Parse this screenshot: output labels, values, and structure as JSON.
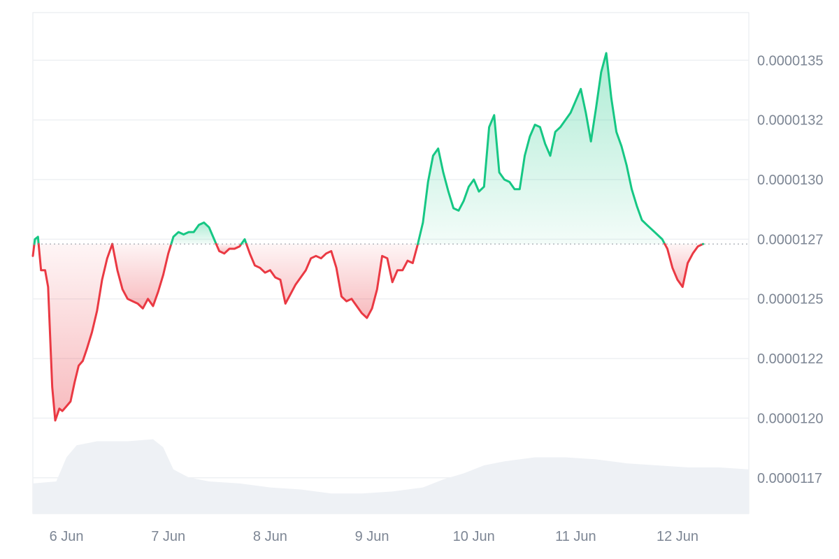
{
  "chart_data": {
    "type": "area",
    "title": "",
    "xlabel": "",
    "ylabel": "",
    "x_ticks": [
      "6 Jun",
      "7 Jun",
      "8 Jun",
      "9 Jun",
      "10 Jun",
      "11 Jun",
      "12 Jun"
    ],
    "y_ticks": [
      "0.0000135",
      "0.0000132",
      "0.0000130",
      "0.0000127",
      "0.0000125",
      "0.0000122",
      "0.0000120",
      "0.0000117"
    ],
    "y_tick_values": [
      1.35e-05,
      1.325e-05,
      1.3e-05,
      1.275e-05,
      1.25e-05,
      1.225e-05,
      1.2e-05,
      1.175e-05
    ],
    "x_range_days": [
      5.67,
      12.7
    ],
    "ylim": [
      1.16e-05,
      1.37e-05
    ],
    "baseline": 1.273e-05,
    "grid": true,
    "colors": {
      "up": "#16c784",
      "down": "#ea3943",
      "grid": "#eef0f3",
      "volume": "#eef1f5",
      "baseline": "#9aa0a8"
    },
    "price_series": {
      "name": "",
      "points": [
        [
          5.67,
          1.268e-05
        ],
        [
          5.69,
          1.275e-05
        ],
        [
          5.72,
          1.276e-05
        ],
        [
          5.75,
          1.262e-05
        ],
        [
          5.79,
          1.262e-05
        ],
        [
          5.82,
          1.255e-05
        ],
        [
          5.86,
          1.213e-05
        ],
        [
          5.89,
          1.199e-05
        ],
        [
          5.93,
          1.204e-05
        ],
        [
          5.96,
          1.203e-05
        ],
        [
          6.0,
          1.205e-05
        ],
        [
          6.04,
          1.207e-05
        ],
        [
          6.08,
          1.215e-05
        ],
        [
          6.12,
          1.222e-05
        ],
        [
          6.16,
          1.224e-05
        ],
        [
          6.2,
          1.229e-05
        ],
        [
          6.25,
          1.236e-05
        ],
        [
          6.3,
          1.245e-05
        ],
        [
          6.35,
          1.258e-05
        ],
        [
          6.4,
          1.267e-05
        ],
        [
          6.45,
          1.273e-05
        ],
        [
          6.5,
          1.262e-05
        ],
        [
          6.55,
          1.254e-05
        ],
        [
          6.6,
          1.25e-05
        ],
        [
          6.65,
          1.249e-05
        ],
        [
          6.7,
          1.248e-05
        ],
        [
          6.75,
          1.246e-05
        ],
        [
          6.8,
          1.25e-05
        ],
        [
          6.85,
          1.247e-05
        ],
        [
          6.9,
          1.253e-05
        ],
        [
          6.95,
          1.26e-05
        ],
        [
          7.0,
          1.269e-05
        ],
        [
          7.05,
          1.276e-05
        ],
        [
          7.1,
          1.278e-05
        ],
        [
          7.15,
          1.277e-05
        ],
        [
          7.2,
          1.278e-05
        ],
        [
          7.25,
          1.278e-05
        ],
        [
          7.3,
          1.281e-05
        ],
        [
          7.35,
          1.282e-05
        ],
        [
          7.4,
          1.28e-05
        ],
        [
          7.45,
          1.275e-05
        ],
        [
          7.5,
          1.27e-05
        ],
        [
          7.55,
          1.269e-05
        ],
        [
          7.6,
          1.271e-05
        ],
        [
          7.65,
          1.271e-05
        ],
        [
          7.7,
          1.272e-05
        ],
        [
          7.75,
          1.275e-05
        ],
        [
          7.8,
          1.269e-05
        ],
        [
          7.85,
          1.264e-05
        ],
        [
          7.9,
          1.263e-05
        ],
        [
          7.95,
          1.261e-05
        ],
        [
          8.0,
          1.262e-05
        ],
        [
          8.05,
          1.259e-05
        ],
        [
          8.1,
          1.258e-05
        ],
        [
          8.15,
          1.248e-05
        ],
        [
          8.2,
          1.252e-05
        ],
        [
          8.25,
          1.256e-05
        ],
        [
          8.3,
          1.259e-05
        ],
        [
          8.35,
          1.262e-05
        ],
        [
          8.4,
          1.267e-05
        ],
        [
          8.45,
          1.268e-05
        ],
        [
          8.5,
          1.267e-05
        ],
        [
          8.55,
          1.269e-05
        ],
        [
          8.6,
          1.27e-05
        ],
        [
          8.65,
          1.263e-05
        ],
        [
          8.7,
          1.251e-05
        ],
        [
          8.75,
          1.249e-05
        ],
        [
          8.8,
          1.25e-05
        ],
        [
          8.85,
          1.247e-05
        ],
        [
          8.9,
          1.244e-05
        ],
        [
          8.95,
          1.242e-05
        ],
        [
          9.0,
          1.246e-05
        ],
        [
          9.05,
          1.254e-05
        ],
        [
          9.1,
          1.268e-05
        ],
        [
          9.15,
          1.267e-05
        ],
        [
          9.2,
          1.257e-05
        ],
        [
          9.25,
          1.262e-05
        ],
        [
          9.3,
          1.262e-05
        ],
        [
          9.35,
          1.266e-05
        ],
        [
          9.4,
          1.265e-05
        ],
        [
          9.45,
          1.273e-05
        ],
        [
          9.5,
          1.282e-05
        ],
        [
          9.55,
          1.299e-05
        ],
        [
          9.6,
          1.31e-05
        ],
        [
          9.65,
          1.313e-05
        ],
        [
          9.7,
          1.303e-05
        ],
        [
          9.75,
          1.295e-05
        ],
        [
          9.8,
          1.288e-05
        ],
        [
          9.85,
          1.287e-05
        ],
        [
          9.9,
          1.291e-05
        ],
        [
          9.95,
          1.297e-05
        ],
        [
          10.0,
          1.3e-05
        ],
        [
          10.05,
          1.295e-05
        ],
        [
          10.1,
          1.297e-05
        ],
        [
          10.15,
          1.322e-05
        ],
        [
          10.2,
          1.327e-05
        ],
        [
          10.25,
          1.303e-05
        ],
        [
          10.3,
          1.3e-05
        ],
        [
          10.35,
          1.299e-05
        ],
        [
          10.4,
          1.296e-05
        ],
        [
          10.45,
          1.296e-05
        ],
        [
          10.5,
          1.31e-05
        ],
        [
          10.55,
          1.318e-05
        ],
        [
          10.6,
          1.323e-05
        ],
        [
          10.65,
          1.322e-05
        ],
        [
          10.7,
          1.315e-05
        ],
        [
          10.75,
          1.31e-05
        ],
        [
          10.8,
          1.32e-05
        ],
        [
          10.85,
          1.322e-05
        ],
        [
          10.9,
          1.325e-05
        ],
        [
          10.95,
          1.328e-05
        ],
        [
          11.0,
          1.333e-05
        ],
        [
          11.05,
          1.338e-05
        ],
        [
          11.1,
          1.328e-05
        ],
        [
          11.15,
          1.316e-05
        ],
        [
          11.2,
          1.33e-05
        ],
        [
          11.25,
          1.345e-05
        ],
        [
          11.3,
          1.353e-05
        ],
        [
          11.35,
          1.334e-05
        ],
        [
          11.4,
          1.32e-05
        ],
        [
          11.45,
          1.314e-05
        ],
        [
          11.5,
          1.306e-05
        ],
        [
          11.55,
          1.296e-05
        ],
        [
          11.6,
          1.289e-05
        ],
        [
          11.65,
          1.283e-05
        ],
        [
          11.7,
          1.281e-05
        ],
        [
          11.75,
          1.279e-05
        ],
        [
          11.8,
          1.277e-05
        ],
        [
          11.85,
          1.275e-05
        ],
        [
          11.9,
          1.271e-05
        ],
        [
          11.95,
          1.263e-05
        ],
        [
          12.0,
          1.258e-05
        ],
        [
          12.05,
          1.255e-05
        ],
        [
          12.1,
          1.265e-05
        ],
        [
          12.15,
          1.269e-05
        ],
        [
          12.2,
          1.272e-05
        ],
        [
          12.25,
          1.273e-05
        ]
      ]
    },
    "volume_series": {
      "name": "",
      "points": [
        [
          5.67,
          0.15
        ],
        [
          5.9,
          0.16
        ],
        [
          6.0,
          0.28
        ],
        [
          6.1,
          0.34
        ],
        [
          6.3,
          0.36
        ],
        [
          6.6,
          0.36
        ],
        [
          6.85,
          0.37
        ],
        [
          6.95,
          0.33
        ],
        [
          7.05,
          0.22
        ],
        [
          7.2,
          0.18
        ],
        [
          7.4,
          0.16
        ],
        [
          7.7,
          0.15
        ],
        [
          8.0,
          0.13
        ],
        [
          8.3,
          0.12
        ],
        [
          8.6,
          0.1
        ],
        [
          8.9,
          0.1
        ],
        [
          9.2,
          0.11
        ],
        [
          9.5,
          0.13
        ],
        [
          9.7,
          0.17
        ],
        [
          9.9,
          0.2
        ],
        [
          10.1,
          0.24
        ],
        [
          10.3,
          0.26
        ],
        [
          10.6,
          0.28
        ],
        [
          10.9,
          0.28
        ],
        [
          11.2,
          0.27
        ],
        [
          11.5,
          0.25
        ],
        [
          11.8,
          0.24
        ],
        [
          12.1,
          0.23
        ],
        [
          12.4,
          0.23
        ],
        [
          12.7,
          0.22
        ]
      ]
    }
  }
}
